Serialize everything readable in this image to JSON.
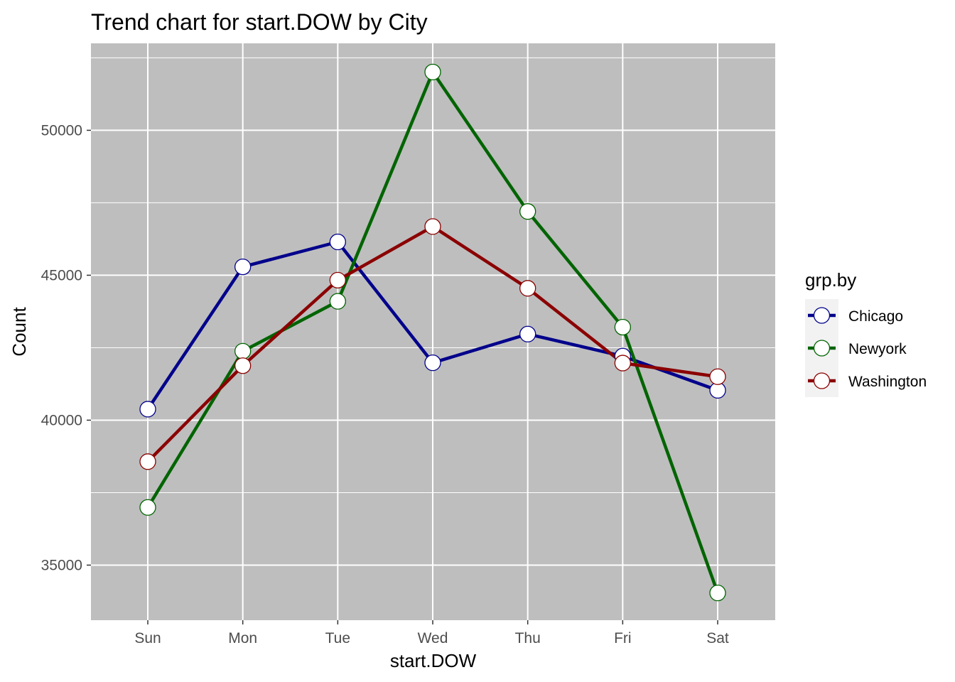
{
  "chart_data": {
    "type": "line",
    "title": "Trend chart for start.DOW by City",
    "xlabel": "start.DOW",
    "ylabel": "Count",
    "categories": [
      "Sun",
      "Mon",
      "Tue",
      "Wed",
      "Thu",
      "Fri",
      "Sat"
    ],
    "ylim": [
      33100,
      53000
    ],
    "yticks": [
      35000,
      40000,
      45000,
      50000
    ],
    "ytick_labels": [
      "35000",
      "40000",
      "45000",
      "50000"
    ],
    "grid": true,
    "panel_background": "#bebebe",
    "legend": {
      "title": "grp.by",
      "placement": "right"
    },
    "series": [
      {
        "name": "Chicago",
        "color": "#00008b",
        "values": [
          40380,
          45290,
          46150,
          41980,
          42970,
          42210,
          41030
        ]
      },
      {
        "name": "Newyork",
        "color": "#006400",
        "values": [
          36990,
          42380,
          44100,
          52010,
          47200,
          43210,
          34040
        ]
      },
      {
        "name": "Washington",
        "color": "#8b0000",
        "values": [
          38570,
          41880,
          44830,
          46680,
          44550,
          41970,
          41500
        ]
      }
    ]
  }
}
